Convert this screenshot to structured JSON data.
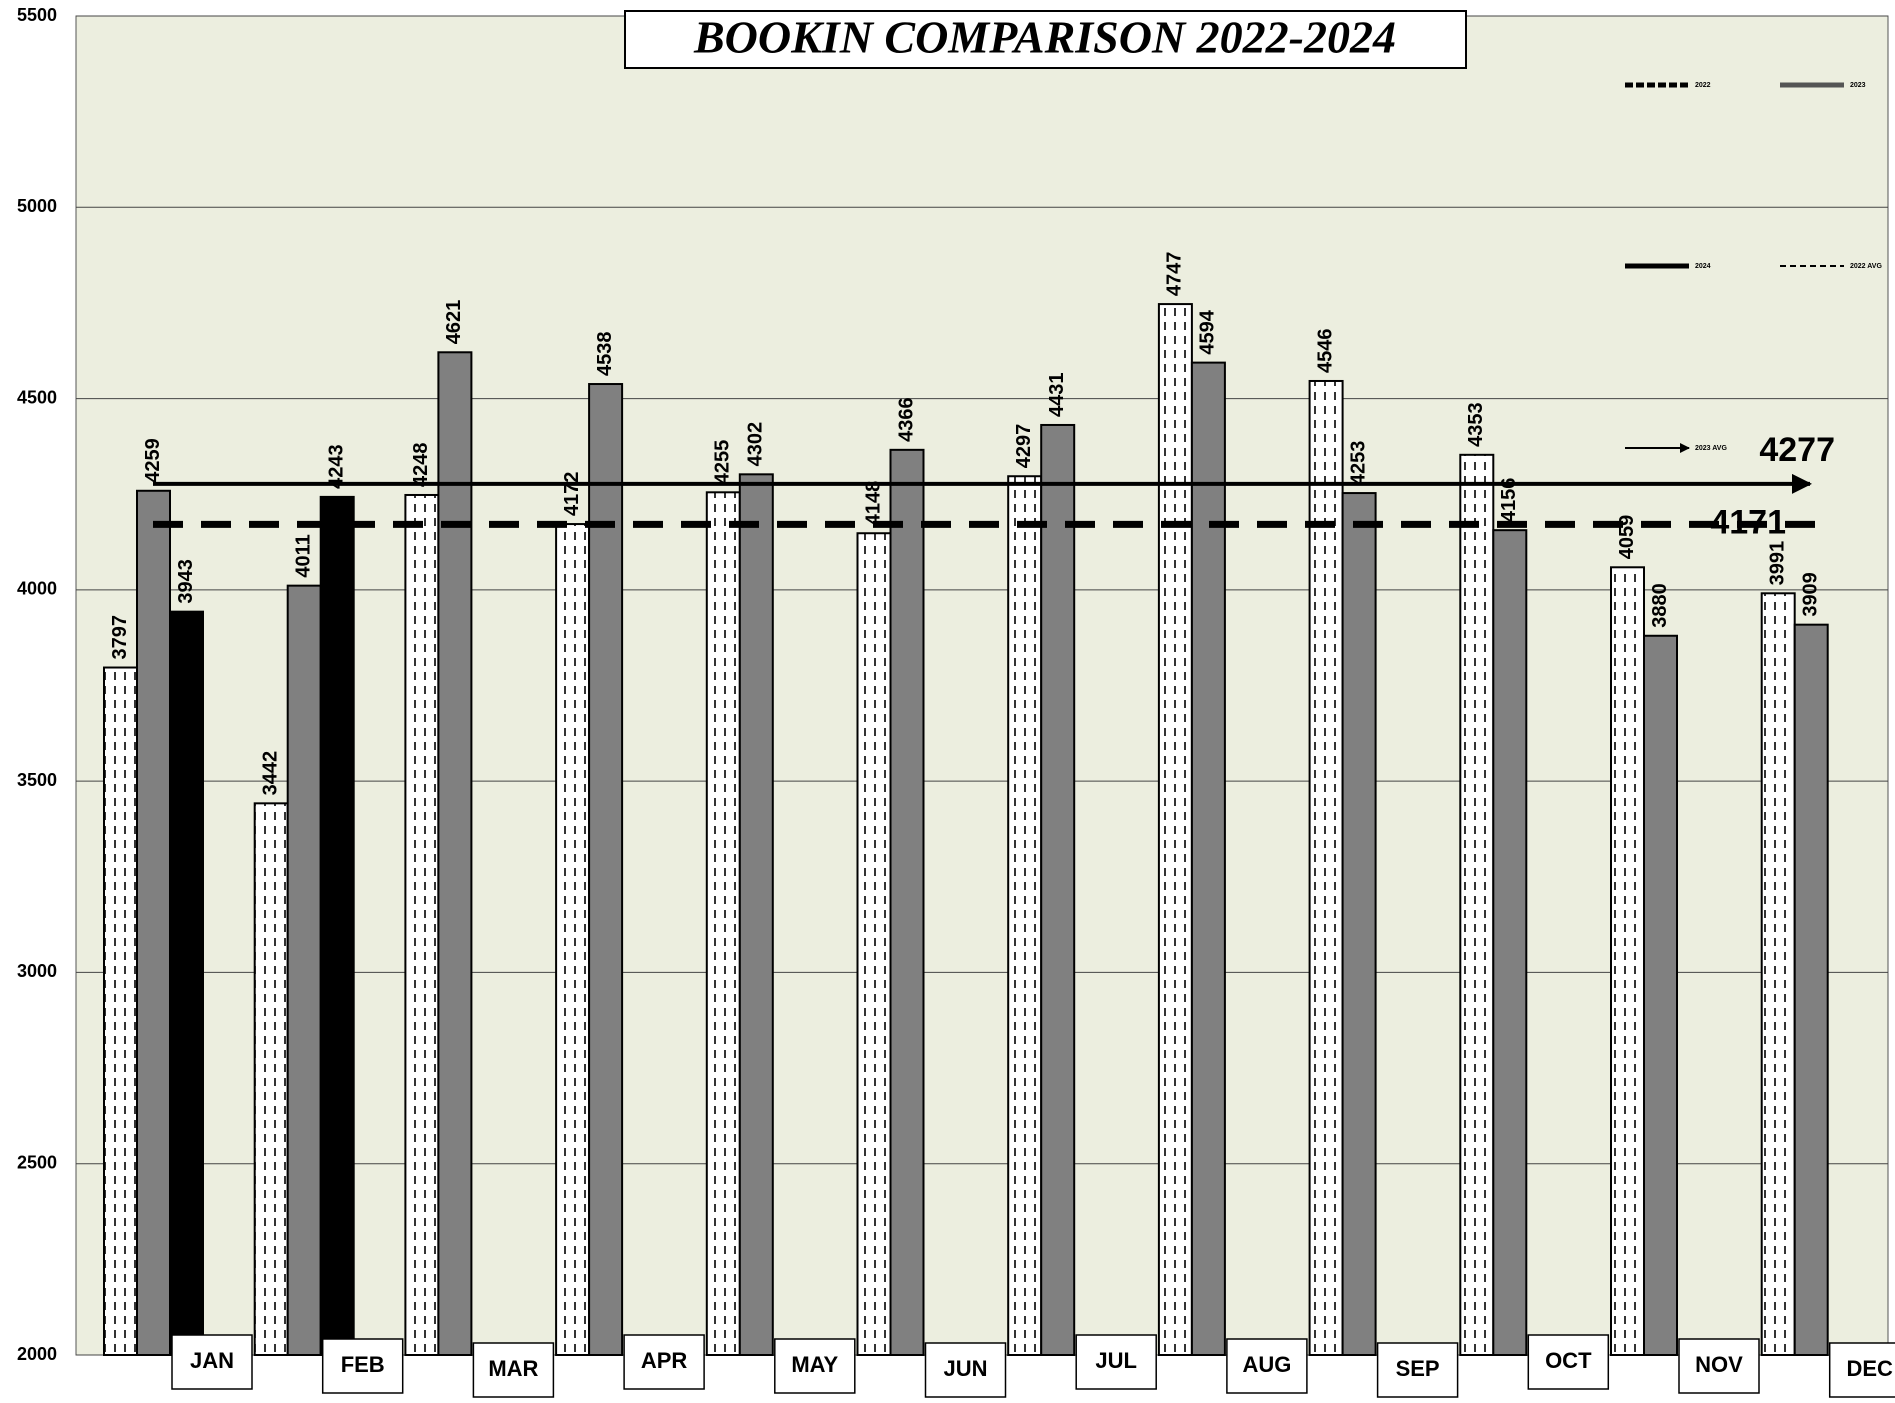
{
  "chart_data": {
    "type": "bar",
    "title": "BOOKIN COMPARISON 2022-2024",
    "categories": [
      "JAN",
      "FEB",
      "MAR",
      "APR",
      "MAY",
      "JUN",
      "JUL",
      "AUG",
      "SEP",
      "OCT",
      "NOV",
      "DEC"
    ],
    "series": [
      {
        "name": "2022",
        "color": "#ffffff",
        "values": [
          3797,
          3442,
          4248,
          4172,
          4255,
          4148,
          4297,
          4747,
          4546,
          4353,
          4059,
          3991
        ]
      },
      {
        "name": "2023",
        "color": "#808080",
        "values": [
          4259,
          4011,
          4621,
          4538,
          4302,
          4366,
          4431,
          4594,
          4253,
          4156,
          3880,
          3909
        ]
      },
      {
        "name": "2024",
        "color": "#000000",
        "values": [
          3943,
          4243,
          null,
          null,
          null,
          null,
          null,
          null,
          null,
          null,
          null,
          null
        ]
      }
    ],
    "reference_lines": [
      {
        "name": "2023 AVG",
        "value": 4277,
        "style": "solid"
      },
      {
        "name": "2022 AVG",
        "value": 4171,
        "style": "dashed"
      }
    ],
    "ylim": [
      2000,
      5500
    ],
    "yticks": [
      2000,
      2500,
      3000,
      3500,
      4000,
      4500,
      5000,
      5500
    ],
    "grid": true
  }
}
